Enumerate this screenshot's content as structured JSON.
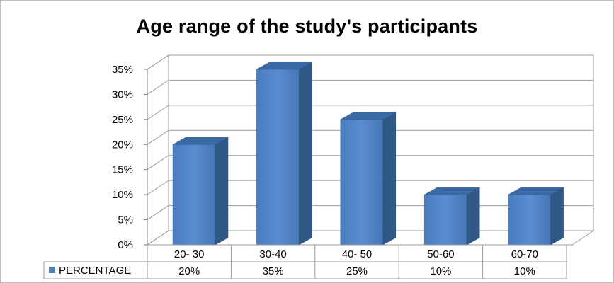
{
  "chart_data": {
    "type": "bar",
    "title": "Age range of the study's participants",
    "categories": [
      "20- 30",
      "30-40",
      "40- 50",
      "50-60",
      "60-70"
    ],
    "series": [
      {
        "name": "PERCENTAGE",
        "values": [
          20,
          35,
          25,
          10,
          10
        ],
        "color": "#4f81bd"
      }
    ],
    "data_labels": [
      "20%",
      "35%",
      "25%",
      "10%",
      "10%"
    ],
    "y_ticks": [
      "0%",
      "5%",
      "10%",
      "15%",
      "20%",
      "25%",
      "30%",
      "35%"
    ],
    "ylim": [
      0,
      35
    ],
    "grid": true,
    "three_d": true,
    "legend": "data-table"
  }
}
